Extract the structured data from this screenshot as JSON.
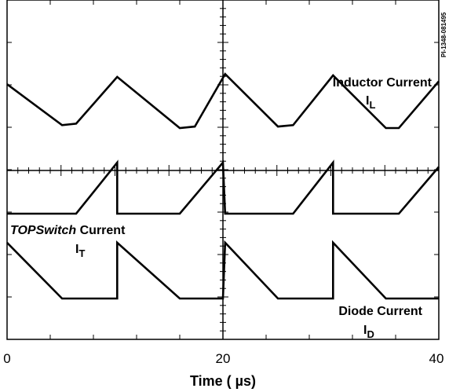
{
  "chart_data": {
    "type": "line",
    "title": "",
    "xlabel": "Time ( µs)",
    "ylabel": "",
    "xlim": [
      0,
      40
    ],
    "x_ticks": [
      "0",
      "20",
      "40"
    ],
    "grid": false,
    "reference_code": "PI-1348-081495",
    "series": [
      {
        "name": "Inductor Current",
        "symbol": "I",
        "subscript": "L",
        "x": [
          0,
          5.1,
          6.4,
          10.2,
          16.0,
          17.4,
          20.2,
          25.1,
          26.5,
          30.2,
          35.1,
          36.3,
          40
        ],
        "y": [
          0.3,
          0.02,
          0.03,
          0.35,
          0.0,
          0.01,
          0.37,
          0.01,
          0.02,
          0.36,
          0.0,
          0.0,
          0.32
        ]
      },
      {
        "name": "TOPSwitch Current",
        "name_italic_part": "TOPSwitch",
        "name_plain_part": " Current",
        "symbol": "I",
        "subscript": "T",
        "x": [
          0,
          6.4,
          10.2,
          10.2,
          16.0,
          20.0,
          20.2,
          26.5,
          30.2,
          30.2,
          36.3,
          40
        ],
        "y": [
          0.0,
          0.0,
          0.35,
          0.0,
          0.0,
          0.35,
          0.0,
          0.0,
          0.35,
          0.0,
          0.0,
          0.32
        ]
      },
      {
        "name": "Diode Current",
        "symbol": "I",
        "subscript": "D",
        "x": [
          0,
          5.1,
          10.2,
          10.2,
          16.0,
          20.0,
          20.2,
          25.1,
          30.2,
          30.2,
          35.1,
          40
        ],
        "y": [
          0.35,
          0.0,
          0.0,
          0.35,
          0.0,
          0.0,
          0.35,
          0.0,
          0.0,
          0.35,
          0.0,
          0.0
        ]
      }
    ]
  }
}
